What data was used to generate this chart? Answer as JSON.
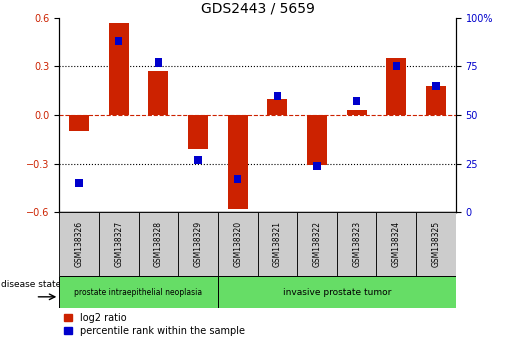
{
  "title": "GDS2443 / 5659",
  "samples": [
    "GSM138326",
    "GSM138327",
    "GSM138328",
    "GSM138329",
    "GSM138320",
    "GSM138321",
    "GSM138322",
    "GSM138323",
    "GSM138324",
    "GSM138325"
  ],
  "log2_ratio": [
    -0.1,
    0.57,
    0.27,
    -0.21,
    -0.58,
    0.1,
    -0.31,
    0.03,
    0.35,
    0.18
  ],
  "percentile": [
    15,
    88,
    77,
    27,
    17,
    60,
    24,
    57,
    75,
    65
  ],
  "red_color": "#cc2200",
  "blue_color": "#0000cc",
  "ylim_left": [
    -0.6,
    0.6
  ],
  "ylim_right": [
    0,
    100
  ],
  "yticks_left": [
    -0.6,
    -0.3,
    0.0,
    0.3,
    0.6
  ],
  "yticks_right": [
    0,
    25,
    50,
    75,
    100
  ],
  "group1_label": "prostate intraepithelial neoplasia",
  "group2_label": "invasive prostate tumor",
  "group1_count": 4,
  "group2_count": 6,
  "disease_state_label": "disease state",
  "legend_red": "log2 ratio",
  "legend_blue": "percentile rank within the sample",
  "group_bg_color": "#66dd66",
  "sample_bg_color": "#cccccc",
  "title_fontsize": 10,
  "tick_fontsize": 7,
  "label_fontsize": 7
}
